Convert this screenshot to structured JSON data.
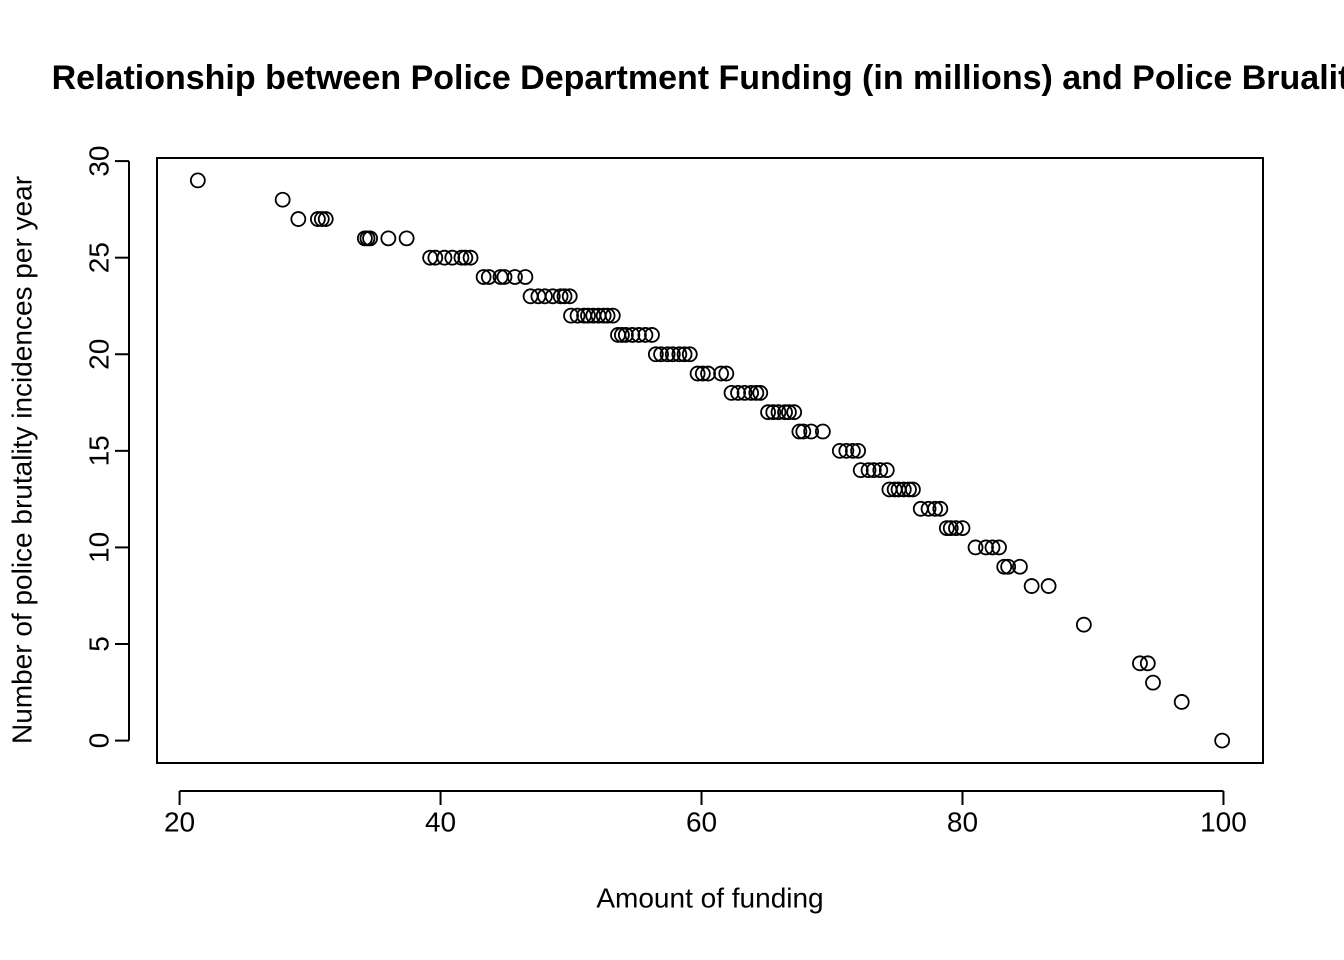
{
  "chart_data": {
    "type": "scatter",
    "title": "Relationship between Police Department Funding (in millions) and Police Bruality",
    "xlabel": "Amount of funding",
    "ylabel": "Number of police brutality incidences per year",
    "x": [
      21.4,
      27.9,
      29.1,
      30.6,
      30.9,
      31.2,
      34.2,
      34.4,
      34.6,
      36.0,
      37.4,
      39.2,
      39.6,
      40.3,
      40.9,
      41.6,
      41.9,
      42.3,
      43.3,
      43.7,
      44.6,
      44.9,
      45.7,
      46.5,
      46.9,
      47.5,
      48.0,
      48.6,
      49.2,
      49.5,
      49.9,
      50.0,
      50.5,
      51.0,
      51.3,
      51.7,
      52.1,
      52.5,
      52.8,
      53.2,
      53.6,
      53.9,
      54.2,
      54.7,
      55.2,
      55.7,
      56.2,
      56.5,
      56.9,
      57.4,
      57.8,
      58.3,
      58.7,
      59.1,
      59.7,
      60.1,
      60.5,
      61.5,
      61.9,
      62.3,
      62.8,
      63.3,
      63.8,
      64.2,
      64.5,
      65.1,
      65.5,
      65.9,
      66.4,
      66.7,
      67.1,
      67.5,
      67.8,
      68.4,
      69.3,
      70.6,
      71.1,
      71.6,
      72.0,
      72.2,
      72.8,
      73.2,
      73.7,
      74.2,
      74.4,
      74.8,
      75.1,
      75.5,
      75.9,
      76.2,
      76.8,
      77.4,
      77.9,
      78.3,
      78.8,
      79.1,
      79.5,
      80.0,
      81.0,
      81.8,
      82.3,
      82.8,
      83.2,
      83.5,
      84.4,
      85.3,
      86.6,
      89.3,
      93.6,
      94.2,
      94.6,
      96.8,
      99.9
    ],
    "values": [
      29,
      28,
      27,
      27,
      27,
      27,
      26,
      26,
      26,
      26,
      26,
      25,
      25,
      25,
      25,
      25,
      25,
      25,
      24,
      24,
      24,
      24,
      24,
      24,
      23,
      23,
      23,
      23,
      23,
      23,
      23,
      22,
      22,
      22,
      22,
      22,
      22,
      22,
      22,
      22,
      21,
      21,
      21,
      21,
      21,
      21,
      21,
      20,
      20,
      20,
      20,
      20,
      20,
      20,
      19,
      19,
      19,
      19,
      19,
      18,
      18,
      18,
      18,
      18,
      18,
      17,
      17,
      17,
      17,
      17,
      17,
      16,
      16,
      16,
      16,
      15,
      15,
      15,
      15,
      14,
      14,
      14,
      14,
      14,
      13,
      13,
      13,
      13,
      13,
      13,
      12,
      12,
      12,
      12,
      11,
      11,
      11,
      11,
      10,
      10,
      10,
      10,
      9,
      9,
      9,
      8,
      8,
      6,
      4,
      4,
      3,
      2,
      0
    ],
    "color": "#000000",
    "xlim": [
      18.27,
      103.03
    ],
    "ylim": [
      -1.16,
      30.16
    ],
    "xticks": [
      20,
      40,
      60,
      80,
      100
    ],
    "yticks": [
      0,
      5,
      10,
      15,
      20,
      25,
      30
    ]
  }
}
